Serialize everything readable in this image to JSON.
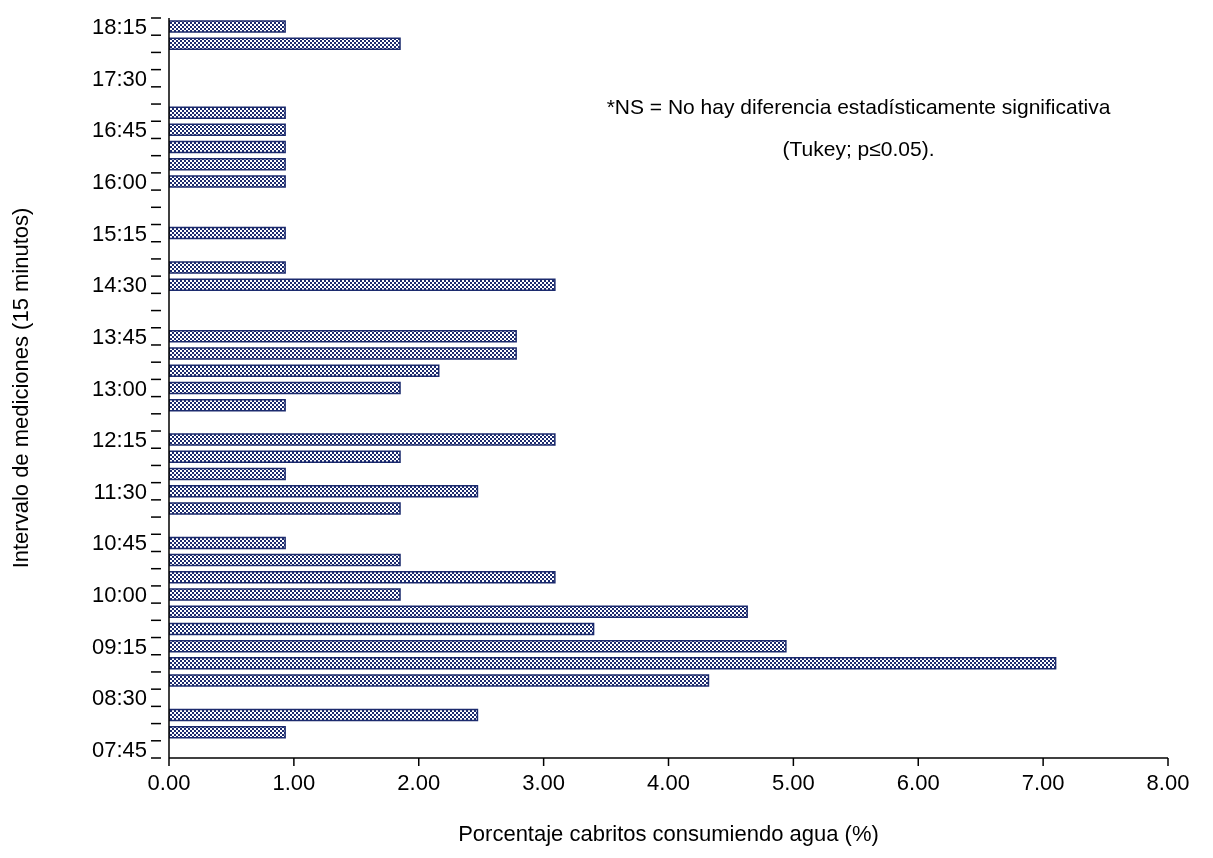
{
  "chart_data": {
    "type": "bar",
    "orientation": "horizontal",
    "xlabel": "Porcentaje cabritos consumiendo agua (%)",
    "ylabel": "Intervalo de mediciones (15 minutos)",
    "annotations": [
      "*NS = No hay diferencia estadísticamente significativa (Tukey; p≤0.05)."
    ],
    "categories": [
      "18:15",
      null,
      null,
      "17:30",
      null,
      null,
      "16:45",
      null,
      null,
      "16:00",
      null,
      null,
      "15:15",
      null,
      null,
      "14:30",
      null,
      null,
      "13:45",
      null,
      null,
      "13:00",
      null,
      null,
      "12:15",
      null,
      null,
      "11:30",
      null,
      null,
      "10:45",
      null,
      null,
      "10:00",
      null,
      null,
      "09:15",
      null,
      null,
      "08:30",
      null,
      null,
      "07:45"
    ],
    "values": [
      0.93,
      1.85,
      null,
      null,
      null,
      0.93,
      0.93,
      0.93,
      0.93,
      0.93,
      null,
      null,
      0.93,
      null,
      0.93,
      3.09,
      null,
      null,
      2.78,
      2.78,
      2.16,
      1.85,
      0.93,
      null,
      3.09,
      1.85,
      0.93,
      2.47,
      1.85,
      null,
      0.93,
      1.85,
      3.09,
      1.85,
      4.63,
      3.4,
      4.94,
      7.1,
      4.32,
      null,
      2.47,
      0.93,
      null
    ],
    "color": "#1c2b6e",
    "xlim": [
      0,
      8
    ],
    "xticks": [
      {
        "value": 0,
        "label": "0.00"
      },
      {
        "value": 1,
        "label": "1.00"
      },
      {
        "value": 2,
        "label": "2.00"
      },
      {
        "value": 3,
        "label": "3.00"
      },
      {
        "value": 4,
        "label": "4.00"
      },
      {
        "value": 5,
        "label": "5.00"
      },
      {
        "value": 6,
        "label": "6.00"
      },
      {
        "value": 7,
        "label": "7.00"
      },
      {
        "value": 8,
        "label": "8.00"
      }
    ]
  }
}
